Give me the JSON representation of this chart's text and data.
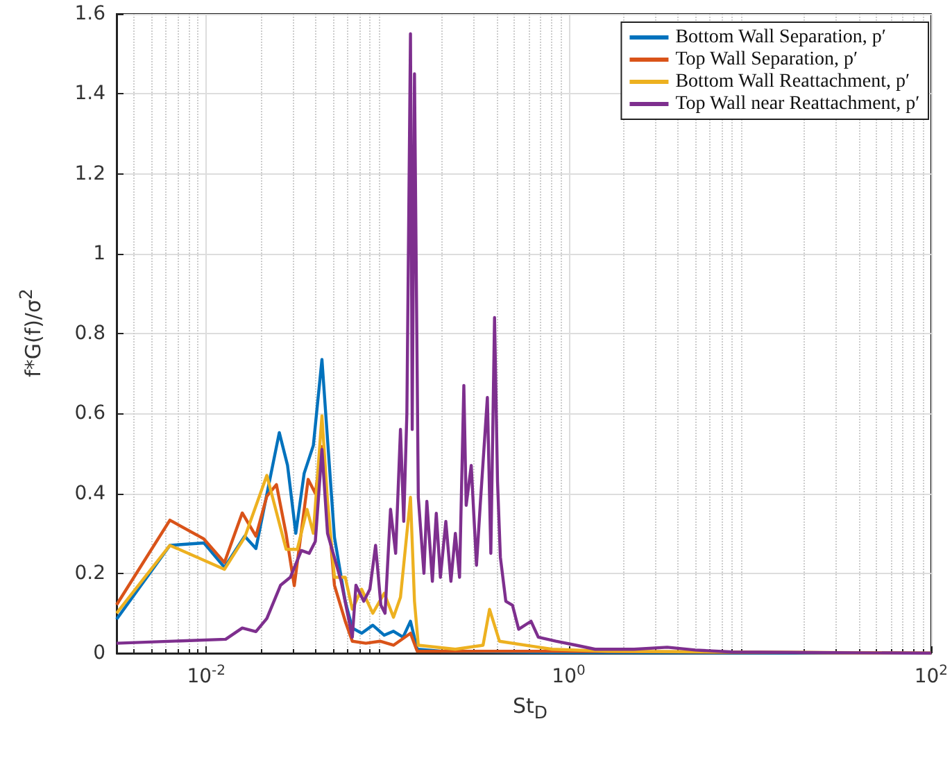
{
  "chart_data": {
    "type": "line",
    "xlabel": "St$_{D}$",
    "ylabel": "f*G(f)/σ$^{2}$",
    "log": "x",
    "grid": true,
    "legend": "top right",
    "line_style": "solid",
    "marker": "none",
    "xlim": [
      0.0032,
      100
    ],
    "xticks": [
      {
        "value": 0.01,
        "label": "10$^{-2}$"
      },
      {
        "value": 1,
        "label": "10$^{0}$"
      },
      {
        "value": 100,
        "label": "10$^{2}$"
      }
    ],
    "ylim": [
      0,
      1.6
    ],
    "yticks": [
      0,
      0.2,
      0.4,
      0.6,
      0.8,
      1,
      1.2,
      1.4,
      1.6
    ],
    "series": [
      {
        "name": "Bottom Wall Separation, p′",
        "color": "#0072bd",
        "x": [
          0.0032,
          0.0063,
          0.0097,
          0.0126,
          0.0163,
          0.0188,
          0.0253,
          0.0281,
          0.0312,
          0.0347,
          0.039,
          0.0435,
          0.0467,
          0.051,
          0.0585,
          0.064,
          0.072,
          0.083,
          0.096,
          0.108,
          0.122,
          0.134,
          0.146,
          0.2,
          0.81,
          100
        ],
        "values": [
          0.085,
          0.27,
          0.276,
          0.215,
          0.293,
          0.262,
          0.552,
          0.47,
          0.3,
          0.45,
          0.52,
          0.735,
          0.535,
          0.29,
          0.13,
          0.063,
          0.05,
          0.07,
          0.045,
          0.055,
          0.04,
          0.08,
          0.01,
          0.005,
          0.002,
          0
        ]
      },
      {
        "name": "Top Wall Separation, p′",
        "color": "#d95319",
        "x": [
          0.0032,
          0.0063,
          0.0097,
          0.0126,
          0.0158,
          0.0188,
          0.0216,
          0.0244,
          0.0276,
          0.0306,
          0.0365,
          0.04,
          0.0435,
          0.0467,
          0.051,
          0.0585,
          0.064,
          0.076,
          0.091,
          0.108,
          0.134,
          0.146,
          0.81,
          100
        ],
        "values": [
          0.121,
          0.333,
          0.286,
          0.227,
          0.351,
          0.293,
          0.393,
          0.422,
          0.298,
          0.169,
          0.435,
          0.4,
          0.517,
          0.369,
          0.17,
          0.08,
          0.03,
          0.025,
          0.03,
          0.02,
          0.05,
          0.005,
          0.005,
          0
        ]
      },
      {
        "name": "Bottom Wall Reattachment, p′",
        "color": "#edb120",
        "x": [
          0.0032,
          0.0063,
          0.0126,
          0.0163,
          0.0216,
          0.0276,
          0.0318,
          0.036,
          0.039,
          0.0435,
          0.0467,
          0.051,
          0.0585,
          0.064,
          0.072,
          0.083,
          0.096,
          0.108,
          0.118,
          0.134,
          0.141,
          0.148,
          0.237,
          0.337,
          0.366,
          0.415,
          0.81,
          1.64,
          100
        ],
        "values": [
          0.1,
          0.27,
          0.21,
          0.29,
          0.445,
          0.26,
          0.26,
          0.36,
          0.3,
          0.594,
          0.38,
          0.19,
          0.19,
          0.11,
          0.16,
          0.1,
          0.15,
          0.09,
          0.14,
          0.39,
          0.13,
          0.02,
          0.01,
          0.02,
          0.11,
          0.03,
          0.01,
          0.005,
          0
        ]
      },
      {
        "name": "Top Wall near Reattachment, p′",
        "color": "#7e2f8e",
        "x": [
          0.0032,
          0.0128,
          0.0158,
          0.0188,
          0.0216,
          0.0257,
          0.0291,
          0.0335,
          0.037,
          0.04,
          0.0435,
          0.0467,
          0.0555,
          0.061,
          0.064,
          0.067,
          0.074,
          0.08,
          0.086,
          0.092,
          0.097,
          0.104,
          0.111,
          0.118,
          0.123,
          0.128,
          0.134,
          0.137,
          0.141,
          0.148,
          0.159,
          0.165,
          0.177,
          0.186,
          0.196,
          0.21,
          0.224,
          0.237,
          0.25,
          0.264,
          0.272,
          0.29,
          0.31,
          0.325,
          0.356,
          0.372,
          0.39,
          0.405,
          0.42,
          0.45,
          0.49,
          0.53,
          0.62,
          0.68,
          0.85,
          1.1,
          1.4,
          2.3,
          3.5,
          5,
          8,
          100
        ],
        "values": [
          0.025,
          0.035,
          0.063,
          0.054,
          0.087,
          0.17,
          0.19,
          0.257,
          0.25,
          0.28,
          0.51,
          0.3,
          0.18,
          0.087,
          0.04,
          0.17,
          0.13,
          0.16,
          0.27,
          0.12,
          0.1,
          0.36,
          0.25,
          0.56,
          0.33,
          0.6,
          1.55,
          0.56,
          1.45,
          0.39,
          0.2,
          0.38,
          0.18,
          0.35,
          0.19,
          0.33,
          0.18,
          0.3,
          0.19,
          0.67,
          0.37,
          0.47,
          0.22,
          0.37,
          0.64,
          0.25,
          0.84,
          0.43,
          0.24,
          0.13,
          0.12,
          0.06,
          0.08,
          0.04,
          0.03,
          0.02,
          0.01,
          0.01,
          0.015,
          0.008,
          0.003,
          0
        ]
      }
    ]
  }
}
